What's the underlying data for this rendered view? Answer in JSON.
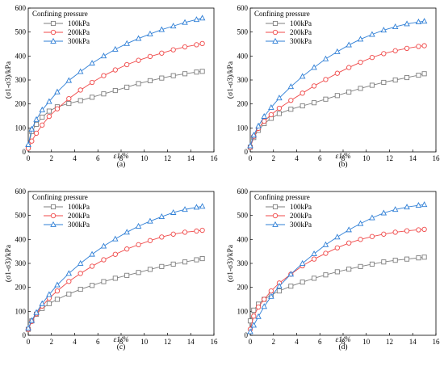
{
  "figure": {
    "legend_title": "Confining pressure",
    "panels_note": "four panels"
  },
  "colors": {
    "100kPa": "#7f7f7f",
    "200kPa": "#f04a4a",
    "300kPa": "#2f7fd6"
  },
  "chart_data": [
    {
      "type": "line",
      "panel_label": "(a)",
      "xlabel": "ε1/%",
      "ylabel": "(σ1-σ3)/kPa",
      "xlim": [
        0,
        16
      ],
      "ylim": [
        0,
        600
      ],
      "xticks": [
        0,
        2,
        4,
        6,
        8,
        10,
        12,
        14,
        16
      ],
      "yticks": [
        0,
        100,
        200,
        300,
        400,
        500,
        600
      ],
      "grid": false,
      "legend": {
        "title": "Confining pressure",
        "placement": "top-left"
      },
      "x": [
        0,
        0.3,
        0.7,
        1.2,
        1.8,
        2.5,
        3.5,
        4.5,
        5.5,
        6.5,
        7.5,
        8.5,
        9.5,
        10.5,
        11.5,
        12.5,
        13.5,
        14.5,
        15
      ],
      "series": [
        {
          "name": "100kPa",
          "marker": "square",
          "values": [
            20,
            85,
            115,
            145,
            170,
            188,
            202,
            214,
            228,
            242,
            256,
            270,
            285,
            297,
            308,
            318,
            326,
            333,
            336
          ]
        },
        {
          "name": "200kPa",
          "marker": "circle",
          "values": [
            15,
            45,
            78,
            112,
            148,
            180,
            222,
            258,
            290,
            318,
            342,
            364,
            382,
            398,
            412,
            426,
            438,
            447,
            452
          ]
        },
        {
          "name": "300kPa",
          "marker": "triangle",
          "values": [
            30,
            95,
            135,
            175,
            210,
            250,
            298,
            335,
            370,
            400,
            428,
            452,
            473,
            492,
            510,
            525,
            540,
            552,
            558
          ]
        }
      ]
    },
    {
      "type": "line",
      "panel_label": "(b)",
      "xlabel": "ε1/%",
      "ylabel": "(σ1-σ3)/kPa",
      "xlim": [
        0,
        16
      ],
      "ylim": [
        0,
        600
      ],
      "xticks": [
        0,
        2,
        4,
        6,
        8,
        10,
        12,
        14,
        16
      ],
      "yticks": [
        0,
        100,
        200,
        300,
        400,
        500,
        600
      ],
      "grid": false,
      "legend": {
        "title": "Confining pressure",
        "placement": "top-left"
      },
      "x": [
        0,
        0.3,
        0.7,
        1.2,
        1.8,
        2.5,
        3.5,
        4.5,
        5.5,
        6.5,
        7.5,
        8.5,
        9.5,
        10.5,
        11.5,
        12.5,
        13.5,
        14.5,
        15
      ],
      "series": [
        {
          "name": "100kPa",
          "marker": "square",
          "values": [
            20,
            60,
            90,
            118,
            140,
            160,
            178,
            192,
            205,
            220,
            235,
            250,
            265,
            278,
            290,
            300,
            310,
            320,
            326
          ]
        },
        {
          "name": "200kPa",
          "marker": "circle",
          "values": [
            20,
            65,
            98,
            128,
            155,
            182,
            215,
            245,
            275,
            302,
            328,
            352,
            374,
            394,
            410,
            422,
            432,
            440,
            443
          ]
        },
        {
          "name": "300kPa",
          "marker": "triangle",
          "values": [
            25,
            70,
            108,
            148,
            185,
            225,
            272,
            315,
            352,
            388,
            418,
            446,
            470,
            490,
            508,
            522,
            534,
            542,
            545
          ]
        }
      ]
    },
    {
      "type": "line",
      "panel_label": "(c)",
      "xlabel": "ε1/%",
      "ylabel": "(σ1-σ3)/kPa",
      "xlim": [
        0,
        16
      ],
      "ylim": [
        0,
        600
      ],
      "xticks": [
        0,
        2,
        4,
        6,
        8,
        10,
        12,
        14,
        16
      ],
      "yticks": [
        0,
        100,
        200,
        300,
        400,
        500,
        600
      ],
      "grid": false,
      "legend": {
        "title": "Confining pressure",
        "placement": "top-left"
      },
      "x": [
        0,
        0.3,
        0.7,
        1.2,
        1.8,
        2.5,
        3.5,
        4.5,
        5.5,
        6.5,
        7.5,
        8.5,
        9.5,
        10.5,
        11.5,
        12.5,
        13.5,
        14.5,
        15
      ],
      "series": [
        {
          "name": "100kPa",
          "marker": "square",
          "values": [
            25,
            60,
            88,
            112,
            132,
            150,
            172,
            192,
            208,
            224,
            238,
            250,
            262,
            275,
            287,
            297,
            306,
            315,
            320
          ]
        },
        {
          "name": "200kPa",
          "marker": "circle",
          "values": [
            25,
            58,
            90,
            122,
            155,
            185,
            225,
            258,
            288,
            315,
            338,
            360,
            378,
            395,
            410,
            422,
            430,
            435,
            438
          ]
        },
        {
          "name": "300kPa",
          "marker": "triangle",
          "values": [
            30,
            62,
            95,
            132,
            170,
            210,
            258,
            300,
            338,
            372,
            402,
            430,
            455,
            476,
            495,
            512,
            525,
            534,
            538
          ]
        }
      ]
    },
    {
      "type": "line",
      "panel_label": "(d)",
      "xlabel": "ε1/%",
      "ylabel": "(σ1-σ3)/kPa",
      "xlim": [
        0,
        16
      ],
      "ylim": [
        0,
        600
      ],
      "xticks": [
        0,
        2,
        4,
        6,
        8,
        10,
        12,
        14,
        16
      ],
      "yticks": [
        0,
        100,
        200,
        300,
        400,
        500,
        600
      ],
      "grid": false,
      "legend": {
        "title": "Confining pressure",
        "placement": "top-left"
      },
      "x": [
        0,
        0.3,
        0.7,
        1.2,
        1.8,
        2.5,
        3.5,
        4.5,
        5.5,
        6.5,
        7.5,
        8.5,
        9.5,
        10.5,
        11.5,
        12.5,
        13.5,
        14.5,
        15
      ],
      "series": [
        {
          "name": "100kPa",
          "marker": "square",
          "values": [
            60,
            105,
            130,
            150,
            168,
            185,
            205,
            222,
            238,
            252,
            265,
            276,
            287,
            297,
            306,
            313,
            318,
            323,
            326
          ]
        },
        {
          "name": "200kPa",
          "marker": "circle",
          "values": [
            25,
            80,
            118,
            150,
            185,
            218,
            255,
            290,
            318,
            342,
            365,
            385,
            400,
            412,
            422,
            430,
            436,
            440,
            442
          ]
        },
        {
          "name": "300kPa",
          "marker": "triangle",
          "values": [
            15,
            42,
            78,
            120,
            162,
            205,
            255,
            300,
            340,
            378,
            410,
            440,
            466,
            490,
            510,
            525,
            535,
            542,
            545
          ]
        }
      ]
    }
  ]
}
